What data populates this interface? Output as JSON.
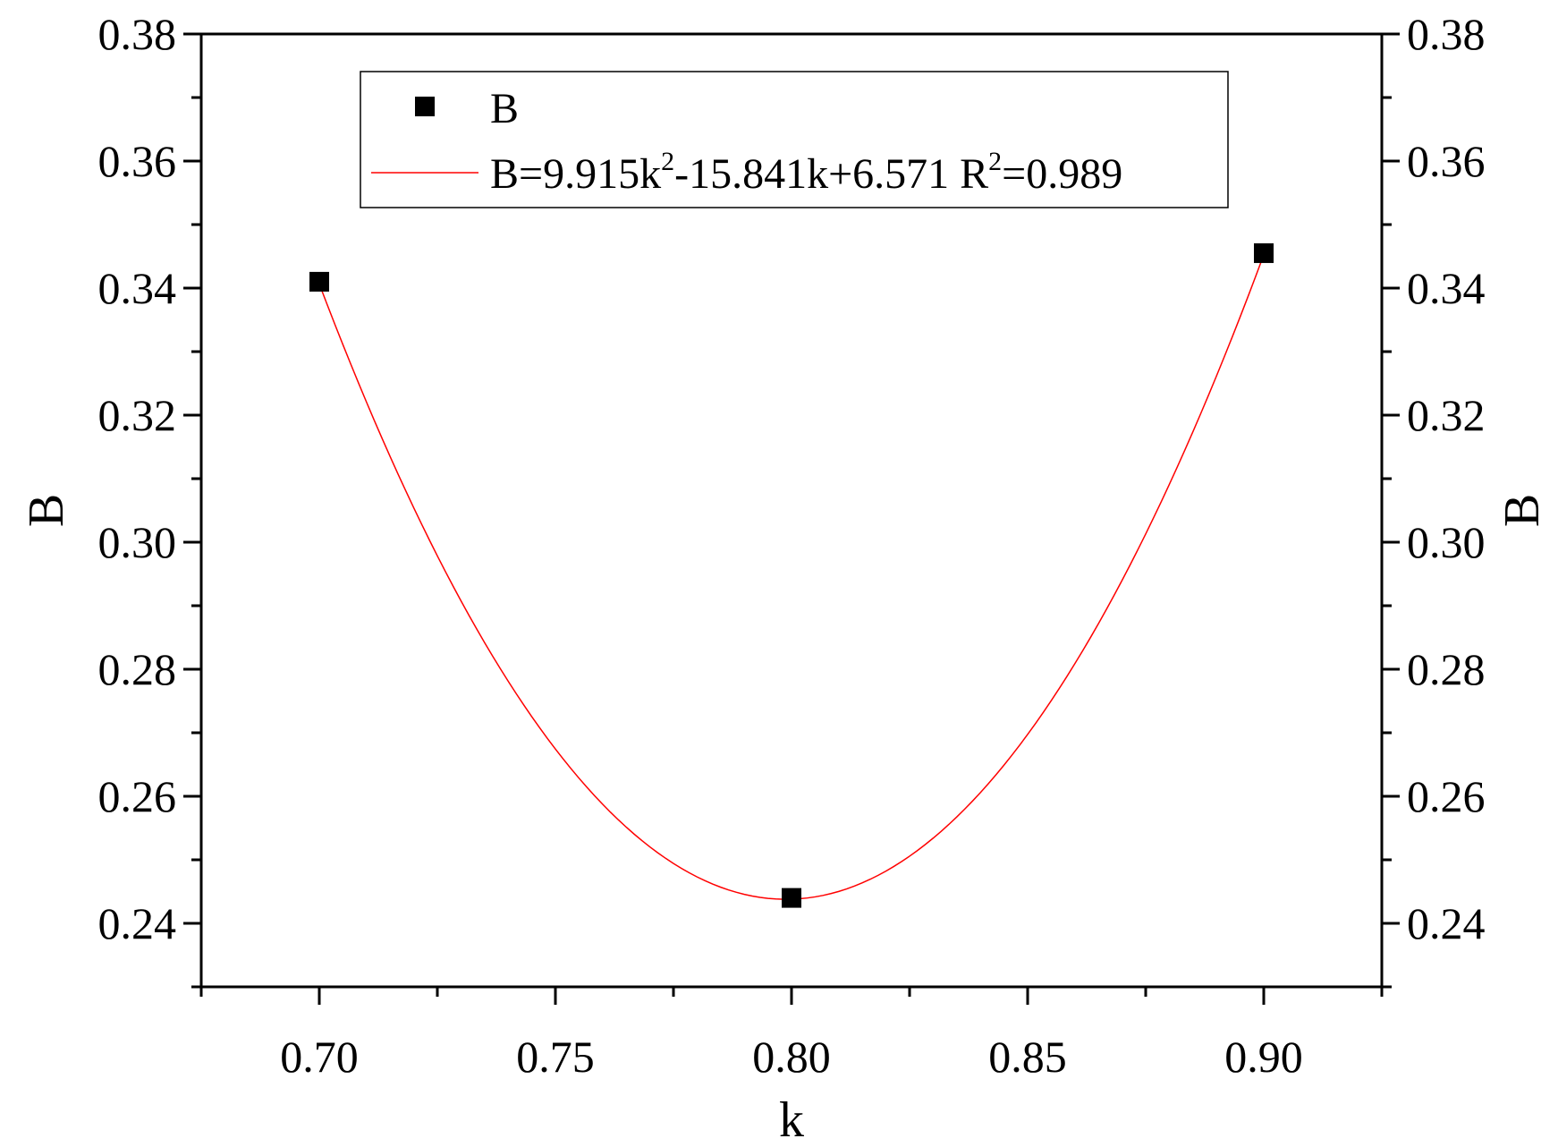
{
  "chart_data": {
    "type": "scatter",
    "xlabel": "k",
    "ylabel": "B",
    "ylabel_right": "B",
    "xlim": [
      0.675,
      0.925
    ],
    "ylim": [
      0.23,
      0.38
    ],
    "x_ticks": [
      "0.70",
      "0.75",
      "0.80",
      "0.85",
      "0.90"
    ],
    "x_tick_values": [
      0.7,
      0.75,
      0.8,
      0.85,
      0.9
    ],
    "y_ticks": [
      "0.24",
      "0.26",
      "0.28",
      "0.30",
      "0.32",
      "0.34",
      "0.36",
      "0.38"
    ],
    "y_tick_values": [
      0.24,
      0.26,
      0.28,
      0.3,
      0.32,
      0.34,
      0.36,
      0.38
    ],
    "series": [
      {
        "name": "B",
        "kind": "scatter",
        "marker": "square",
        "color": "#000000",
        "x": [
          0.7,
          0.8,
          0.9
        ],
        "y": [
          0.341,
          0.244,
          0.3455
        ]
      },
      {
        "kind": "fit-curve",
        "color": "#ff0000",
        "coefficients": {
          "a": 9.915,
          "b": -15.841,
          "c": 6.571
        },
        "x_range": [
          0.7,
          0.9
        ]
      }
    ],
    "legend": {
      "position": "top-center",
      "entries": [
        {
          "label": "B",
          "symbol": "square"
        },
        {
          "label_parts": [
            "B=9.915k",
            "2",
            "-15.841k+6.571 R",
            "2",
            "=0.989"
          ],
          "symbol": "line"
        }
      ]
    },
    "grid": false
  }
}
